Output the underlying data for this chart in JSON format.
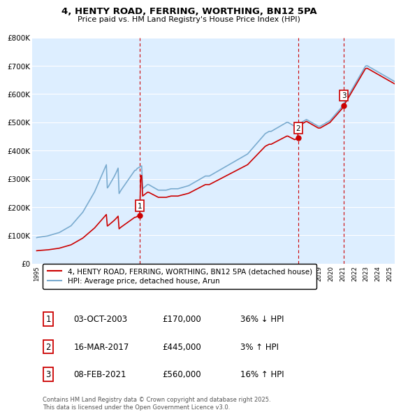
{
  "title": "4, HENTY ROAD, FERRING, WORTHING, BN12 5PA",
  "subtitle": "Price paid vs. HM Land Registry's House Price Index (HPI)",
  "property_label": "4, HENTY ROAD, FERRING, WORTHING, BN12 5PA (detached house)",
  "hpi_label": "HPI: Average price, detached house, Arun",
  "property_color": "#cc0000",
  "hpi_color": "#7aabcf",
  "background_color": "#ffffff",
  "plot_bg_color": "#ddeeff",
  "grid_color": "#ffffff",
  "ylim": [
    0,
    800000
  ],
  "yticks": [
    0,
    100000,
    200000,
    300000,
    400000,
    500000,
    600000,
    700000,
    800000
  ],
  "ytick_labels": [
    "£0",
    "£100K",
    "£200K",
    "£300K",
    "£400K",
    "£500K",
    "£600K",
    "£700K",
    "£800K"
  ],
  "sale_date_nums": [
    2003.75,
    2017.21,
    2021.1
  ],
  "sale_prices": [
    170000,
    445000,
    560000
  ],
  "sale_labels": [
    "1",
    "2",
    "3"
  ],
  "vline_color": "#cc0000",
  "footnote": "Contains HM Land Registry data © Crown copyright and database right 2025.\nThis data is licensed under the Open Government Licence v3.0.",
  "table_data": [
    [
      "1",
      "03-OCT-2003",
      "£170,000",
      "36% ↓ HPI"
    ],
    [
      "2",
      "16-MAR-2017",
      "£445,000",
      "3% ↑ HPI"
    ],
    [
      "3",
      "08-FEB-2021",
      "£560,000",
      "16% ↑ HPI"
    ]
  ],
  "hpi_monthly": {
    "start_year": 1995,
    "start_month": 1,
    "values": [
      92000,
      93000,
      93500,
      94000,
      94500,
      95000,
      95500,
      96000,
      96500,
      97000,
      97500,
      98000,
      99000,
      100000,
      101000,
      102000,
      103000,
      104000,
      105000,
      106000,
      107000,
      108000,
      109000,
      110000,
      112000,
      114000,
      116000,
      118000,
      120000,
      122000,
      124000,
      126000,
      128000,
      130000,
      132000,
      134000,
      138000,
      142000,
      146000,
      150000,
      154000,
      158000,
      162000,
      166000,
      170000,
      174000,
      178000,
      182000,
      188000,
      194000,
      200000,
      206000,
      212000,
      218000,
      224000,
      230000,
      236000,
      242000,
      248000,
      254000,
      262000,
      270000,
      278000,
      286000,
      294000,
      302000,
      310000,
      318000,
      326000,
      334000,
      342000,
      350000,
      268000,
      272000,
      278000,
      284000,
      290000,
      296000,
      302000,
      308000,
      315000,
      322000,
      330000,
      338000,
      248000,
      254000,
      260000,
      265000,
      270000,
      275000,
      280000,
      285000,
      290000,
      295000,
      300000,
      305000,
      310000,
      315000,
      320000,
      325000,
      330000,
      330000,
      335000,
      338000,
      340000,
      342000,
      344000,
      346000,
      265000,
      268000,
      271000,
      274000,
      277000,
      280000,
      280000,
      278000,
      276000,
      274000,
      272000,
      270000,
      268000,
      266000,
      264000,
      262000,
      260000,
      260000,
      260000,
      260000,
      260000,
      260000,
      260000,
      260000,
      260000,
      261000,
      262000,
      263000,
      264000,
      265000,
      265000,
      265000,
      265000,
      265000,
      265000,
      265000,
      265000,
      266000,
      267000,
      268000,
      269000,
      270000,
      271000,
      272000,
      273000,
      274000,
      275000,
      276000,
      278000,
      280000,
      282000,
      284000,
      286000,
      288000,
      290000,
      292000,
      294000,
      296000,
      298000,
      300000,
      302000,
      304000,
      306000,
      308000,
      310000,
      310000,
      310000,
      310000,
      310000,
      312000,
      314000,
      316000,
      318000,
      320000,
      322000,
      324000,
      326000,
      328000,
      330000,
      332000,
      334000,
      336000,
      338000,
      340000,
      342000,
      344000,
      346000,
      348000,
      350000,
      352000,
      354000,
      356000,
      358000,
      360000,
      362000,
      364000,
      366000,
      368000,
      370000,
      372000,
      374000,
      376000,
      378000,
      380000,
      382000,
      384000,
      386000,
      388000,
      392000,
      396000,
      400000,
      404000,
      408000,
      412000,
      416000,
      420000,
      424000,
      428000,
      432000,
      436000,
      440000,
      444000,
      448000,
      452000,
      456000,
      460000,
      462000,
      464000,
      466000,
      468000,
      468000,
      468000,
      470000,
      472000,
      474000,
      476000,
      478000,
      480000,
      482000,
      484000,
      486000,
      488000,
      490000,
      492000,
      494000,
      496000,
      498000,
      500000,
      500000,
      498000,
      496000,
      494000,
      492000,
      490000,
      488000,
      486000,
      488000,
      490000,
      492000,
      494000,
      496000,
      498000,
      500000,
      502000,
      504000,
      506000,
      508000,
      510000,
      508000,
      506000,
      504000,
      502000,
      500000,
      498000,
      496000,
      494000,
      492000,
      490000,
      488000,
      486000,
      486000,
      486000,
      488000,
      490000,
      492000,
      494000,
      496000,
      498000,
      500000,
      502000,
      504000,
      506000,
      510000,
      514000,
      518000,
      522000,
      526000,
      530000,
      534000,
      538000,
      542000,
      546000,
      550000,
      554000,
      560000,
      566000,
      572000,
      578000,
      584000,
      590000,
      596000,
      602000,
      608000,
      614000,
      620000,
      626000,
      632000,
      638000,
      644000,
      650000,
      656000,
      662000,
      668000,
      674000,
      680000,
      686000,
      692000,
      698000,
      700000,
      700000,
      698000,
      696000,
      694000,
      692000,
      690000,
      688000,
      686000,
      684000,
      682000,
      680000,
      678000,
      676000,
      674000,
      672000,
      670000,
      668000,
      666000,
      664000,
      662000,
      660000,
      658000,
      656000,
      654000,
      652000,
      650000,
      648000,
      646000,
      644000,
      644000,
      646000,
      648000,
      650000,
      652000,
      654000
    ]
  }
}
